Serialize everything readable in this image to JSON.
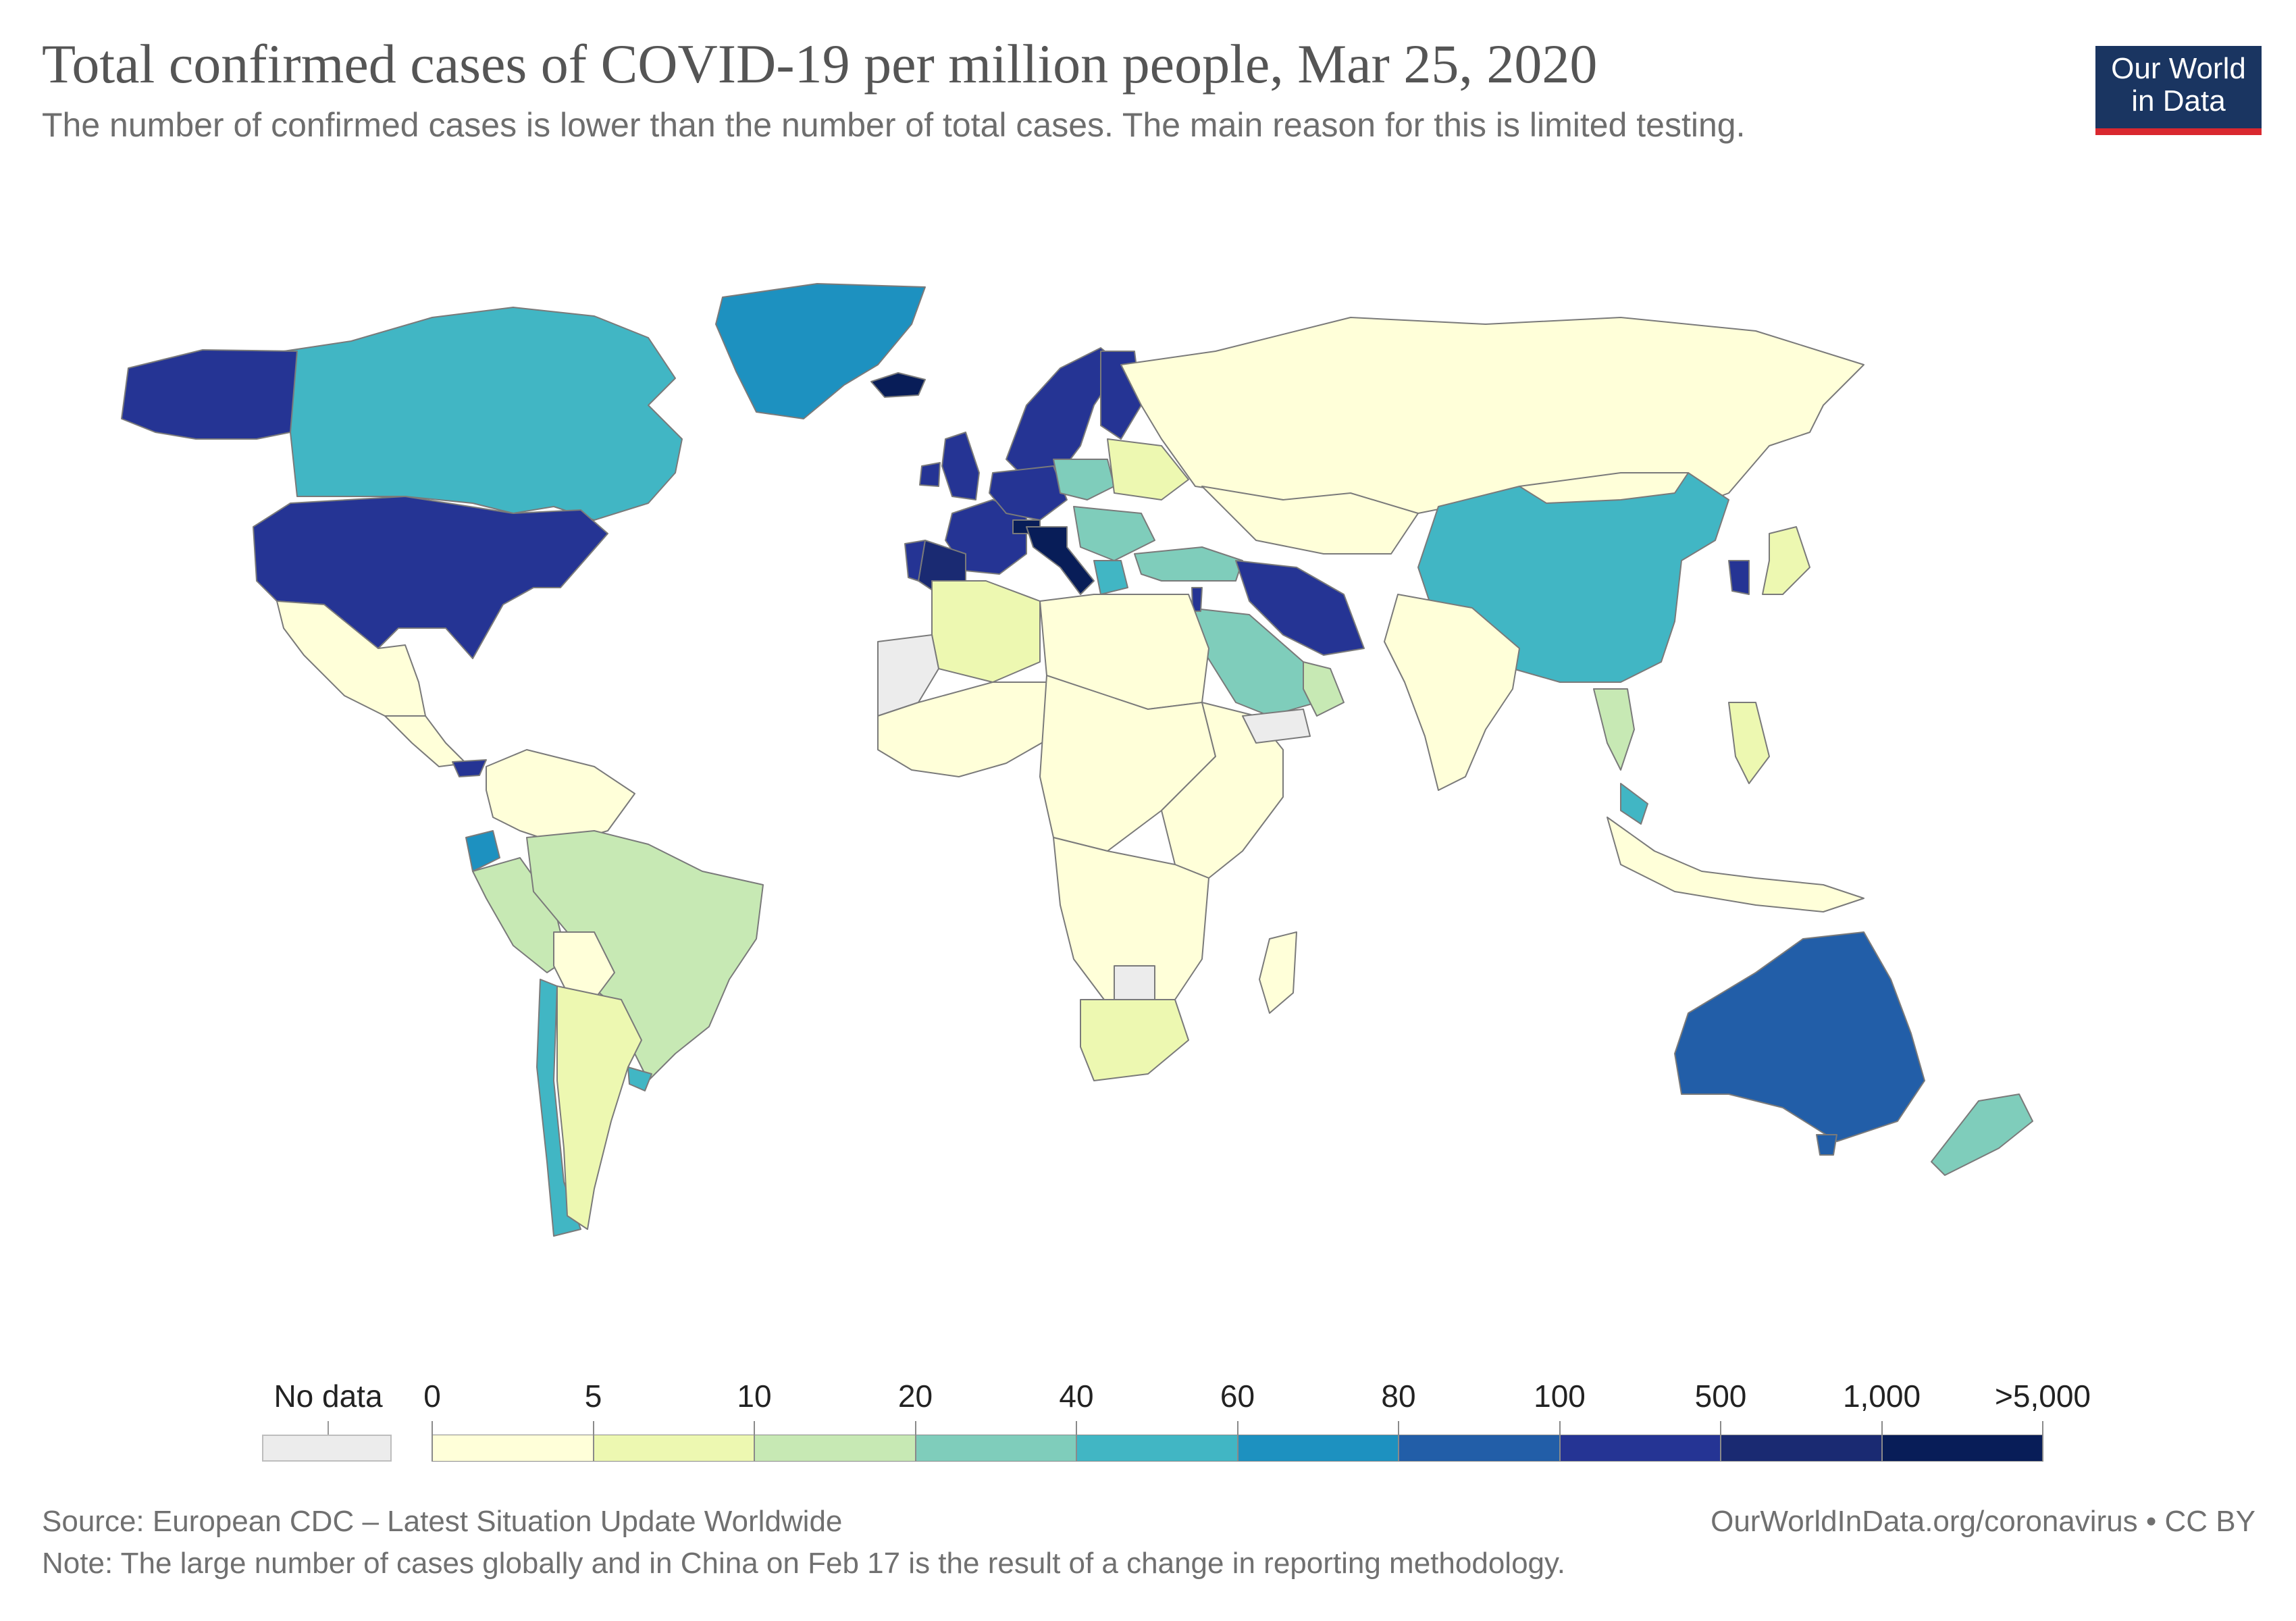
{
  "title": "Total confirmed cases of COVID-19 per million people, Mar 25, 2020",
  "subtitle": "The number of confirmed cases is lower than the number of total cases. The main reason for this is limited testing.",
  "logo": {
    "line1": "Our World",
    "line2": "in Data"
  },
  "legend": {
    "no_data_label": "No data",
    "no_data_color": "#ececec",
    "tick_labels": [
      "0",
      "5",
      "10",
      "20",
      "40",
      "60",
      "80",
      "100",
      "500",
      "1,000",
      ">5,000"
    ],
    "bin_colors": [
      "#ffffd9",
      "#edf8b1",
      "#c7e9b4",
      "#7fcdbb",
      "#41b6c4",
      "#1d91c0",
      "#225ea8",
      "#253494",
      "#1a2a72",
      "#081d58"
    ]
  },
  "footer": {
    "source": "Source: European CDC – Latest Situation Update Worldwide",
    "note": "Note: The large number of cases globally and in China on Feb 17 is the result of a change in reporting methodology.",
    "url": "OurWorldInData.org/coronavirus • CC BY"
  },
  "countries": [
    {
      "name": "Canada",
      "color": "#41b6c4"
    },
    {
      "name": "Alaska (US)",
      "color": "#253494"
    },
    {
      "name": "Greenland",
      "color": "#1d91c0"
    },
    {
      "name": "Iceland",
      "color": "#081d58"
    },
    {
      "name": "United States",
      "color": "#253494"
    },
    {
      "name": "Mexico",
      "color": "#ffffd9"
    },
    {
      "name": "Central America",
      "color": "#ffffd9"
    },
    {
      "name": "Panama",
      "color": "#253494"
    },
    {
      "name": "Colombia/Venezuela",
      "color": "#ffffd9"
    },
    {
      "name": "Ecuador",
      "color": "#1d91c0"
    },
    {
      "name": "Peru",
      "color": "#c7e9b4"
    },
    {
      "name": "Brazil",
      "color": "#c7e9b4"
    },
    {
      "name": "Bolivia",
      "color": "#ffffd9"
    },
    {
      "name": "Chile",
      "color": "#41b6c4"
    },
    {
      "name": "Argentina",
      "color": "#edf8b1"
    },
    {
      "name": "Uruguay",
      "color": "#41b6c4"
    },
    {
      "name": "Norway/Sweden",
      "color": "#253494"
    },
    {
      "name": "Finland",
      "color": "#253494"
    },
    {
      "name": "United Kingdom",
      "color": "#253494"
    },
    {
      "name": "Ireland",
      "color": "#253494"
    },
    {
      "name": "France",
      "color": "#253494"
    },
    {
      "name": "Spain",
      "color": "#1a2a72"
    },
    {
      "name": "Portugal",
      "color": "#253494"
    },
    {
      "name": "Germany/Benelux",
      "color": "#253494"
    },
    {
      "name": "Switzerland",
      "color": "#081d58"
    },
    {
      "name": "Italy",
      "color": "#081d58"
    },
    {
      "name": "Poland",
      "color": "#7fcdbb"
    },
    {
      "name": "Balkans",
      "color": "#7fcdbb"
    },
    {
      "name": "Greece",
      "color": "#41b6c4"
    },
    {
      "name": "Ukraine/Belarus",
      "color": "#edf8b1"
    },
    {
      "name": "Russia",
      "color": "#ffffd9"
    },
    {
      "name": "Kazakhstan",
      "color": "#ffffd9"
    },
    {
      "name": "Turkey",
      "color": "#7fcdbb"
    },
    {
      "name": "Iran",
      "color": "#253494"
    },
    {
      "name": "Saudi Arabia",
      "color": "#7fcdbb"
    },
    {
      "name": "Israel",
      "color": "#253494"
    },
    {
      "name": "China",
      "color": "#41b6c4"
    },
    {
      "name": "South Korea",
      "color": "#253494"
    },
    {
      "name": "Japan",
      "color": "#edf8b1"
    },
    {
      "name": "Mongolia",
      "color": "#ffffd9"
    },
    {
      "name": "India",
      "color": "#ffffd9"
    },
    {
      "name": "Thailand",
      "color": "#c7e9b4"
    },
    {
      "name": "Malaysia",
      "color": "#41b6c4"
    },
    {
      "name": "Indonesia",
      "color": "#ffffd9"
    },
    {
      "name": "Philippines",
      "color": "#edf8b1"
    },
    {
      "name": "Australia",
      "color": "#225ea8"
    },
    {
      "name": "Tasmania",
      "color": "#225ea8"
    },
    {
      "name": "New Zealand",
      "color": "#7fcdbb"
    },
    {
      "name": "Algeria",
      "color": "#edf8b1"
    },
    {
      "name": "North Africa",
      "color": "#ffffd9"
    },
    {
      "name": "Western Sahara",
      "color": "#ececec"
    },
    {
      "name": "West Africa",
      "color": "#ffffd9"
    },
    {
      "name": "Central Africa",
      "color": "#ffffd9"
    },
    {
      "name": "East Africa",
      "color": "#ffffd9"
    },
    {
      "name": "Southern Africa",
      "color": "#ffffd9"
    },
    {
      "name": "Botswana",
      "color": "#ececec"
    },
    {
      "name": "South Africa",
      "color": "#edf8b1"
    },
    {
      "name": "Madagascar",
      "color": "#ffffd9"
    },
    {
      "name": "Yemen",
      "color": "#ececec"
    },
    {
      "name": "Oman/UAE",
      "color": "#c7e9b4"
    }
  ]
}
